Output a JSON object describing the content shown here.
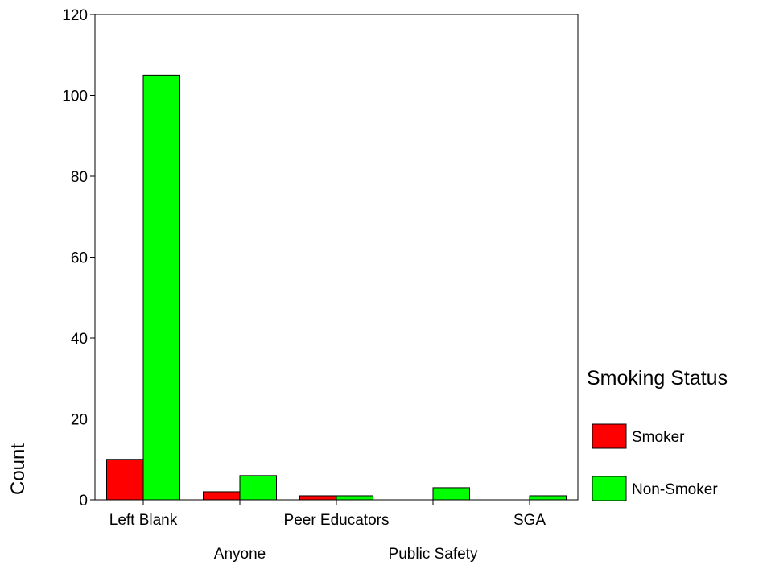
{
  "chart_data": {
    "type": "bar",
    "categories": [
      "Left Blank",
      "Anyone",
      "Peer Educators",
      "Public Safety",
      "SGA"
    ],
    "series": [
      {
        "name": "Smoker",
        "color": "#ff0000",
        "values": [
          10,
          2,
          1,
          0,
          0
        ]
      },
      {
        "name": "Non-Smoker",
        "color": "#00ff00",
        "values": [
          105,
          6,
          1,
          3,
          1
        ]
      }
    ],
    "ylabel": "Count",
    "xlabel": "",
    "ylim": [
      0,
      120
    ],
    "yticks": [
      0,
      20,
      40,
      60,
      80,
      100,
      120
    ],
    "grid": false,
    "legend": {
      "title": "Smoking Status",
      "placement": "right"
    }
  }
}
